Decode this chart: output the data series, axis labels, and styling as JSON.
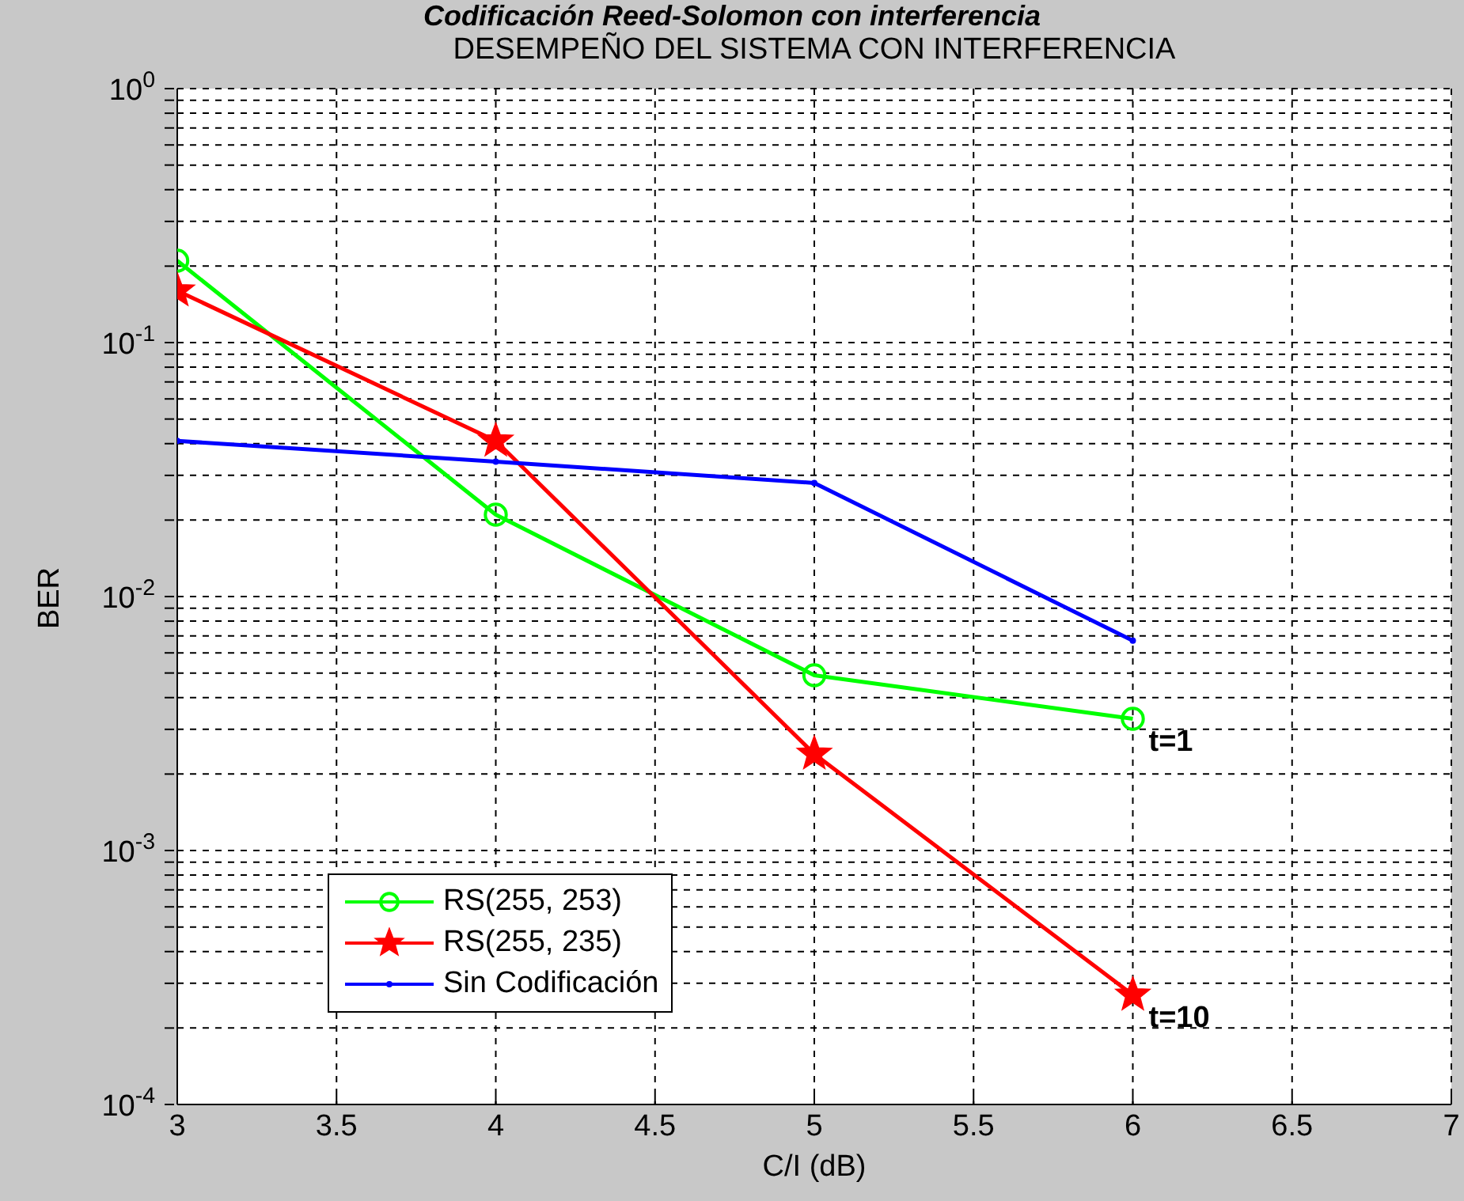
{
  "chart_data": {
    "type": "line",
    "title": "DESEMPEÑO DEL SISTEMA CON INTERFERENCIA",
    "subtitle": "Codificación Reed-Solomon con interferencia",
    "xlabel": "C/I  (dB)",
    "ylabel": "BER",
    "x": [
      3,
      4,
      5,
      6
    ],
    "series": [
      {
        "name": "RS(255, 253)",
        "color": "#00ff00",
        "marker": "circle",
        "values": [
          0.21,
          0.021,
          0.0049,
          0.0033
        ]
      },
      {
        "name": "RS(255, 235)",
        "color": "#ff0000",
        "marker": "star",
        "values": [
          0.16,
          0.041,
          0.0024,
          0.00027
        ]
      },
      {
        "name": "Sin Codificación",
        "color": "#0000ff",
        "marker": "point",
        "values": [
          0.041,
          0.034,
          0.028,
          0.0067
        ]
      }
    ],
    "annotations": [
      {
        "text": "t=1",
        "x": 6,
        "y": 0.0033
      },
      {
        "text": "t=10",
        "x": 6,
        "y": 0.00027
      }
    ],
    "log": "y",
    "xlim": [
      3,
      7
    ],
    "xticks": [
      3,
      3.5,
      4,
      4.5,
      5,
      5.5,
      6,
      6.5,
      7
    ],
    "ylim": [
      0.0001,
      1
    ],
    "yticks": [
      {
        "value": 0.0001,
        "label": "10$^{-4}$"
      },
      {
        "value": 0.0002,
        "label": null
      },
      {
        "value": 0.0003,
        "label": null
      },
      {
        "value": 0.0004,
        "label": null
      },
      {
        "value": 0.0005,
        "label": null
      },
      {
        "value": 0.0006,
        "label": null
      },
      {
        "value": 0.0007,
        "label": null
      },
      {
        "value": 0.0008,
        "label": null
      },
      {
        "value": 0.0009,
        "label": null
      },
      {
        "value": 0.001,
        "label": "10$^{-3}$"
      },
      {
        "value": 0.002,
        "label": null
      },
      {
        "value": 0.003,
        "label": null
      },
      {
        "value": 0.004,
        "label": null
      },
      {
        "value": 0.005,
        "label": null
      },
      {
        "value": 0.006,
        "label": null
      },
      {
        "value": 0.007,
        "label": null
      },
      {
        "value": 0.008,
        "label": null
      },
      {
        "value": 0.009,
        "label": null
      },
      {
        "value": 0.01,
        "label": "10$^{-2}$"
      },
      {
        "value": 0.02,
        "label": null
      },
      {
        "value": 0.03,
        "label": null
      },
      {
        "value": 0.04,
        "label": null
      },
      {
        "value": 0.05,
        "label": null
      },
      {
        "value": 0.06,
        "label": null
      },
      {
        "value": 0.07,
        "label": null
      },
      {
        "value": 0.08,
        "label": null
      },
      {
        "value": 0.09,
        "label": null
      },
      {
        "value": 0.1,
        "label": "10$^{-1}$"
      },
      {
        "value": 0.2,
        "label": null
      },
      {
        "value": 0.3,
        "label": null
      },
      {
        "value": 0.4,
        "label": null
      },
      {
        "value": 0.5,
        "label": null
      },
      {
        "value": 0.6,
        "label": null
      },
      {
        "value": 0.7,
        "label": null
      },
      {
        "value": 0.8,
        "label": null
      },
      {
        "value": 0.9,
        "label": null
      },
      {
        "value": 1,
        "label": "10$^{0}$"
      }
    ],
    "grid": true,
    "legend": "bottom left",
    "line_style": "solid"
  }
}
